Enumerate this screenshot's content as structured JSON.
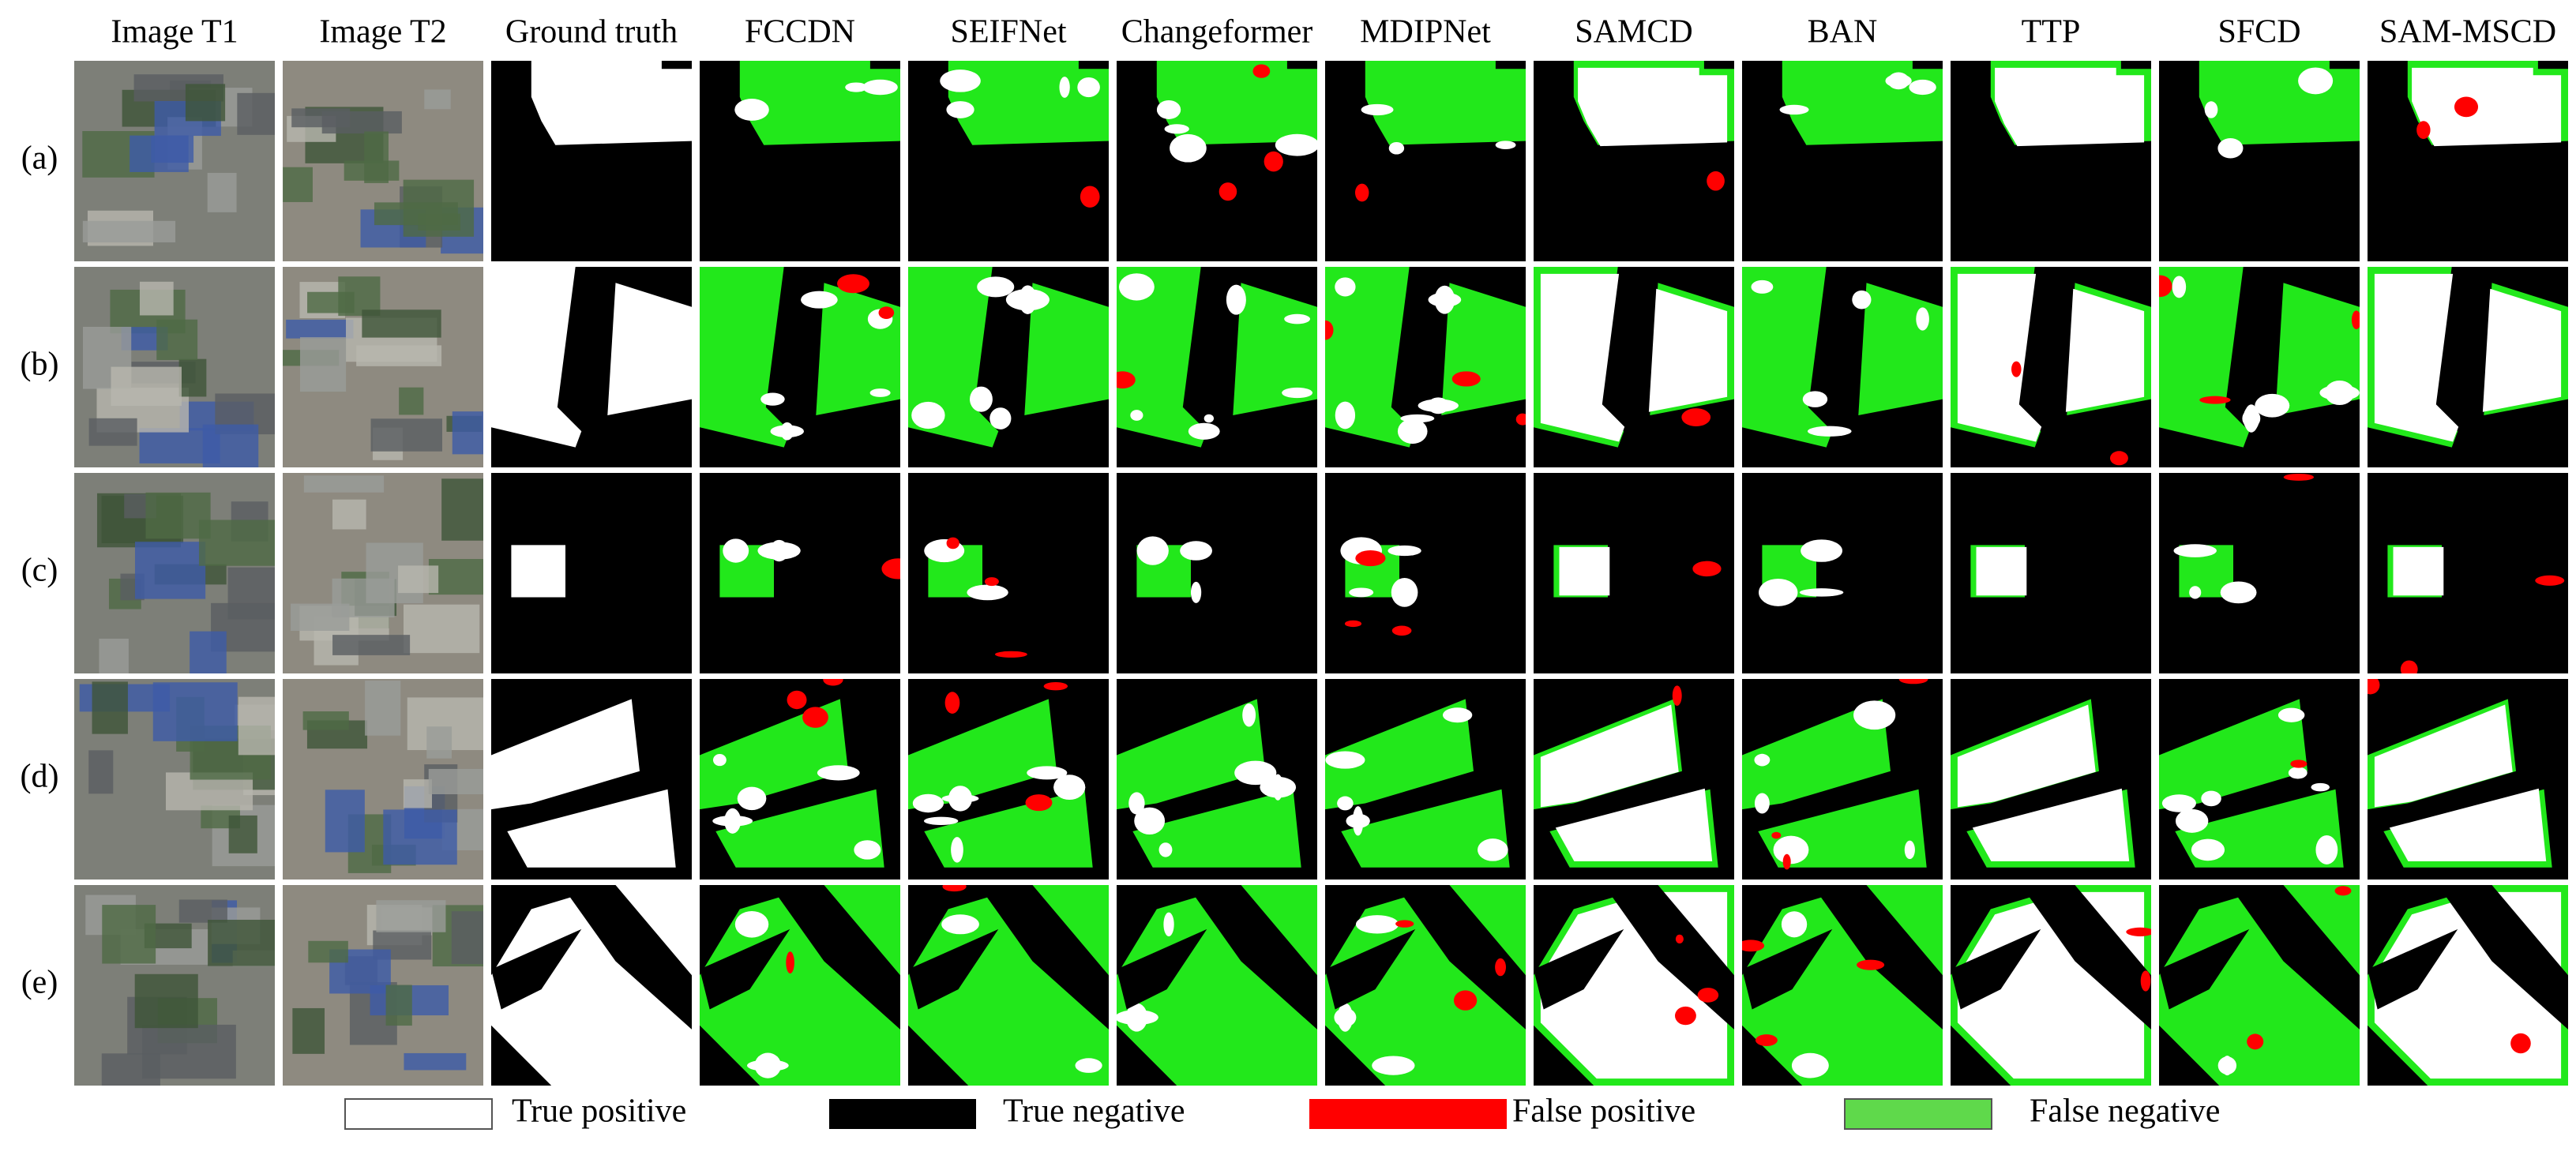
{
  "columns": [
    "Image T1",
    "Image T2",
    "Ground truth",
    "FCCDN",
    "SEIFNet",
    "Changeformer",
    "MDIPNet",
    "SAMCD",
    "BAN",
    "TTP",
    "SFCD",
    "SAM-MSCD"
  ],
  "rows": [
    "(a)",
    "(b)",
    "(c)",
    "(d)",
    "(e)"
  ],
  "legend": [
    "True positive",
    "True negative",
    "False positive",
    "False negative"
  ]
}
